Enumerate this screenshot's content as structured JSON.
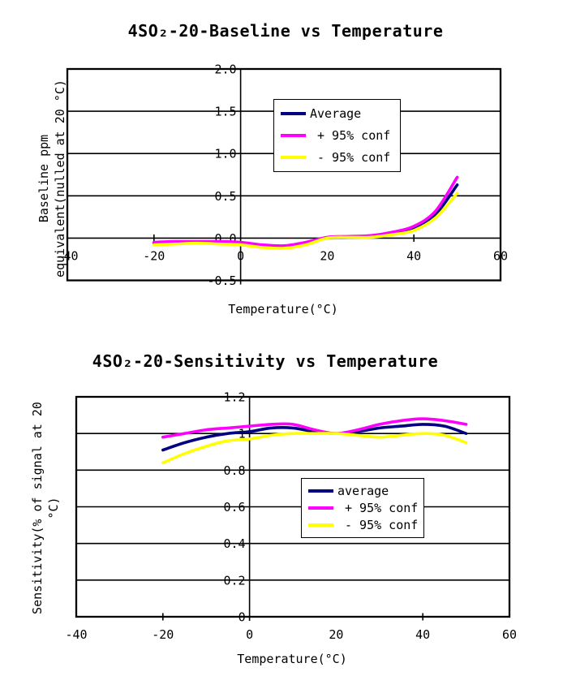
{
  "page": {
    "background": "#ffffff",
    "text_color": "#000000"
  },
  "colors": {
    "average": "#000080",
    "plus_conf": "#ff00ff",
    "minus_conf": "#ffff00",
    "axis": "#000000"
  },
  "chart_data": [
    {
      "type": "line",
      "title": "4SO₂-20-Baseline vs Temperature",
      "xlabel": "Temperature(°C)",
      "ylabel": [
        "Baseline ppm",
        "equivalent(nulled at 20 °C)"
      ],
      "xlim": [
        -40,
        60
      ],
      "ylim": [
        -0.5,
        2.0
      ],
      "xticks": [
        "-40",
        "-20",
        "0",
        "20",
        "40",
        "60"
      ],
      "yticks": [
        "-0.5",
        "0.0",
        "0.5",
        "1.0",
        "1.5",
        "2.0"
      ],
      "grid": "horizontal",
      "legend_position": "upper-center",
      "x": [
        -20,
        -15,
        -10,
        -5,
        0,
        5,
        10,
        15,
        20,
        25,
        30,
        35,
        40,
        45,
        50
      ],
      "series": [
        {
          "name": "Average",
          "color": "#000080",
          "values": [
            -0.06,
            -0.05,
            -0.05,
            -0.05,
            -0.06,
            -0.09,
            -0.1,
            -0.06,
            0.0,
            0.01,
            0.02,
            0.06,
            0.12,
            0.28,
            0.63
          ]
        },
        {
          "name": "+ 95% conf",
          "color": "#ff00ff",
          "values": [
            -0.05,
            -0.04,
            -0.04,
            -0.04,
            -0.05,
            -0.08,
            -0.09,
            -0.05,
            0.01,
            0.02,
            0.03,
            0.07,
            0.14,
            0.32,
            0.72
          ]
        },
        {
          "name": "- 95% conf",
          "color": "#ffff00",
          "values": [
            -0.08,
            -0.07,
            -0.06,
            -0.07,
            -0.08,
            -0.11,
            -0.12,
            -0.08,
            0.0,
            0.01,
            0.01,
            0.04,
            0.09,
            0.24,
            0.53
          ]
        }
      ]
    },
    {
      "type": "line",
      "title": "4SO₂-20-Sensitivity vs Temperature",
      "xlabel": "Temperature(°C)",
      "ylabel": [
        "Sensitivity(% of signal at 20",
        "°C)"
      ],
      "xlim": [
        -40,
        60
      ],
      "ylim": [
        0,
        1.2
      ],
      "xticks": [
        "-40",
        "-20",
        "0",
        "20",
        "40",
        "60"
      ],
      "yticks": [
        "0",
        "0.2",
        "0.4",
        "0.6",
        "0.8",
        "1",
        "1.2"
      ],
      "grid": "horizontal",
      "legend_position": "center-right",
      "x": [
        -20,
        -15,
        -10,
        -5,
        0,
        5,
        10,
        15,
        20,
        25,
        30,
        35,
        40,
        45,
        50
      ],
      "series": [
        {
          "name": "average",
          "color": "#000080",
          "values": [
            0.91,
            0.95,
            0.98,
            1.0,
            1.01,
            1.03,
            1.03,
            1.01,
            1.0,
            1.01,
            1.03,
            1.04,
            1.05,
            1.04,
            1.0
          ]
        },
        {
          "name": "+ 95% conf",
          "color": "#ff00ff",
          "values": [
            0.98,
            1.0,
            1.02,
            1.03,
            1.04,
            1.05,
            1.05,
            1.02,
            1.0,
            1.02,
            1.05,
            1.07,
            1.08,
            1.07,
            1.05
          ]
        },
        {
          "name": "- 95% conf",
          "color": "#ffff00",
          "values": [
            0.84,
            0.89,
            0.93,
            0.96,
            0.97,
            0.99,
            1.0,
            1.0,
            1.0,
            0.99,
            0.98,
            0.99,
            1.0,
            0.99,
            0.95
          ]
        }
      ]
    }
  ]
}
